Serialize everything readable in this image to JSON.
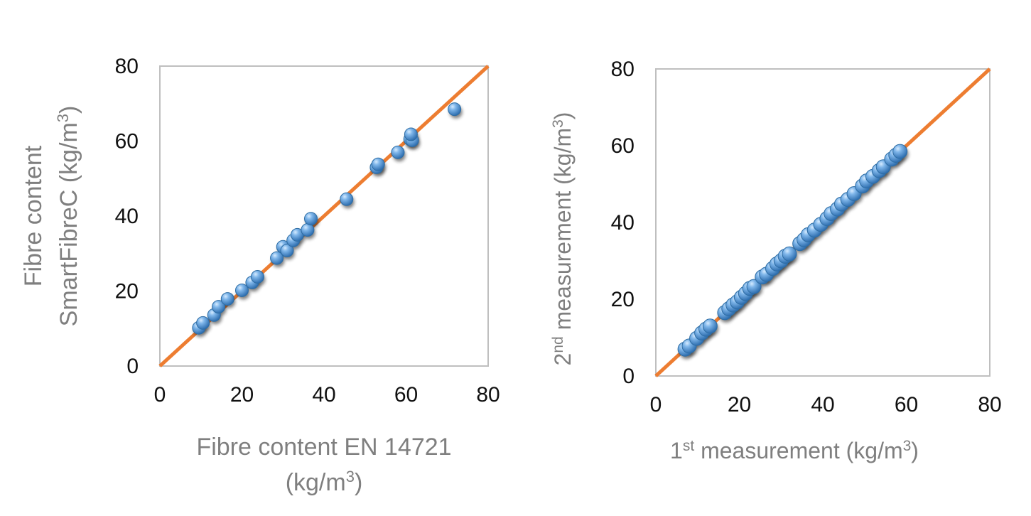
{
  "colors": {
    "point": "#5b9bd5",
    "point_edge": "#2e6da4",
    "line": "#ed7d31",
    "axis": "#bfbfbf",
    "shadow": "#1a1a1a"
  },
  "chart_data": [
    {
      "type": "scatter",
      "xlabel": {
        "line1": "Fibre content  EN 14721",
        "line2_base": "(kg/m",
        "line2_sup": "3",
        "line2_end": ")"
      },
      "ylabel": {
        "line1": "Fibre content",
        "line2_base": "SmartFibreC (kg/m",
        "line2_sup": "3",
        "line2_end": ")"
      },
      "xlim": [
        0,
        80
      ],
      "ylim": [
        0,
        80
      ],
      "xticks": [
        "0",
        "20",
        "40",
        "60",
        "80"
      ],
      "yticks": [
        "0",
        "20",
        "40",
        "60",
        "80"
      ],
      "grid": false,
      "reference_line": [
        [
          0,
          0
        ],
        [
          80,
          80
        ]
      ],
      "points": [
        [
          9.5,
          10.2
        ],
        [
          10.5,
          11.5
        ],
        [
          13.2,
          13.6
        ],
        [
          14.3,
          15.8
        ],
        [
          16.5,
          17.9
        ],
        [
          20.0,
          20.2
        ],
        [
          22.5,
          22.3
        ],
        [
          23.8,
          23.8
        ],
        [
          28.5,
          28.8
        ],
        [
          30.0,
          31.8
        ],
        [
          31.0,
          30.8
        ],
        [
          32.5,
          33.5
        ],
        [
          33.5,
          35.0
        ],
        [
          36.0,
          36.3
        ],
        [
          36.8,
          39.3
        ],
        [
          45.5,
          44.5
        ],
        [
          52.8,
          53.0
        ],
        [
          53.2,
          53.8
        ],
        [
          58.0,
          57.0
        ],
        [
          61.0,
          60.5
        ],
        [
          61.5,
          60.2
        ],
        [
          61.2,
          61.8
        ],
        [
          71.8,
          68.5
        ]
      ]
    },
    {
      "type": "scatter",
      "xlabel": {
        "pre": "1",
        "pre_sup": "st",
        "base": " measurement (kg/m",
        "sup": "3",
        "end": ")"
      },
      "ylabel": {
        "pre": "2",
        "pre_sup": "nd",
        "base": " measurement (kg/m",
        "sup": "3",
        "end": ")"
      },
      "xlim": [
        0,
        80
      ],
      "ylim": [
        0,
        80
      ],
      "xticks": [
        "0",
        "20",
        "40",
        "60",
        "80"
      ],
      "yticks": [
        "0",
        "20",
        "40",
        "60",
        "80"
      ],
      "grid": false,
      "reference_line": [
        [
          0,
          0
        ],
        [
          80,
          80
        ]
      ],
      "points": [
        [
          7.0,
          7.0
        ],
        [
          8.0,
          7.8
        ],
        [
          9.8,
          9.8
        ],
        [
          11.0,
          11.2
        ],
        [
          12.0,
          12.2
        ],
        [
          13.0,
          13.0
        ],
        [
          16.5,
          16.5
        ],
        [
          17.5,
          17.5
        ],
        [
          18.5,
          18.5
        ],
        [
          19.5,
          19.3
        ],
        [
          20.5,
          20.5
        ],
        [
          21.5,
          21.5
        ],
        [
          22.5,
          22.8
        ],
        [
          23.5,
          23.3
        ],
        [
          25.5,
          25.8
        ],
        [
          26.5,
          26.5
        ],
        [
          28.0,
          28.0
        ],
        [
          29.0,
          29.2
        ],
        [
          30.0,
          30.0
        ],
        [
          31.0,
          31.2
        ],
        [
          32.0,
          31.8
        ],
        [
          34.5,
          34.5
        ],
        [
          35.5,
          35.5
        ],
        [
          36.5,
          36.8
        ],
        [
          38.0,
          38.0
        ],
        [
          39.5,
          39.5
        ],
        [
          41.0,
          41.0
        ],
        [
          42.0,
          42.3
        ],
        [
          43.5,
          43.5
        ],
        [
          44.5,
          44.8
        ],
        [
          46.0,
          46.0
        ],
        [
          47.5,
          47.5
        ],
        [
          49.5,
          49.5
        ],
        [
          50.5,
          50.8
        ],
        [
          52.0,
          52.0
        ],
        [
          53.5,
          53.5
        ],
        [
          54.5,
          54.5
        ],
        [
          56.5,
          56.5
        ],
        [
          57.5,
          57.5
        ],
        [
          58.5,
          58.5
        ]
      ]
    }
  ]
}
